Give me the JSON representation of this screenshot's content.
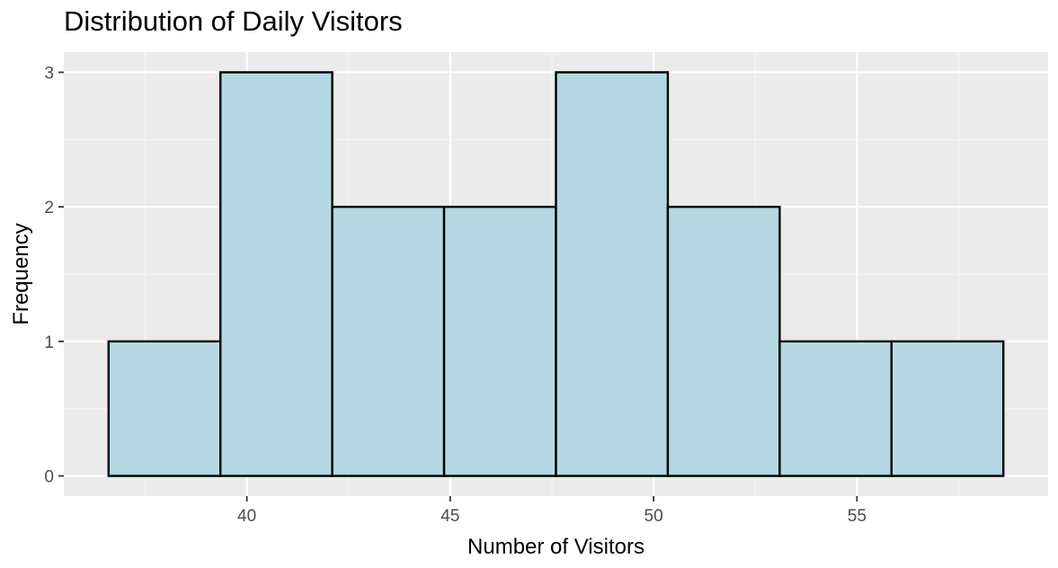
{
  "chart_data": {
    "type": "bar",
    "title": "Distribution of Daily Visitors",
    "xlabel": "Number of Visitors",
    "ylabel": "Frequency",
    "bins": [
      {
        "start": 36.6,
        "end": 39.35,
        "count": 1
      },
      {
        "start": 39.35,
        "end": 42.1,
        "count": 3
      },
      {
        "start": 42.1,
        "end": 44.85,
        "count": 2
      },
      {
        "start": 44.85,
        "end": 47.6,
        "count": 2
      },
      {
        "start": 47.6,
        "end": 50.35,
        "count": 3
      },
      {
        "start": 50.35,
        "end": 53.1,
        "count": 2
      },
      {
        "start": 53.1,
        "end": 55.85,
        "count": 1
      },
      {
        "start": 55.85,
        "end": 58.6,
        "count": 1
      }
    ],
    "xlim": [
      35.5,
      59.7
    ],
    "ylim": [
      -0.15,
      3.15
    ],
    "x_ticks": [
      40,
      45,
      50,
      55
    ],
    "y_ticks": [
      0,
      1,
      2,
      3
    ],
    "grid": true,
    "colors": {
      "bar_fill": "#b5d8e2",
      "bar_stroke": "#000000",
      "panel_background": "#ebebeb",
      "grid_major": "#ffffff",
      "grid_minor": "#f5f5f5"
    }
  }
}
